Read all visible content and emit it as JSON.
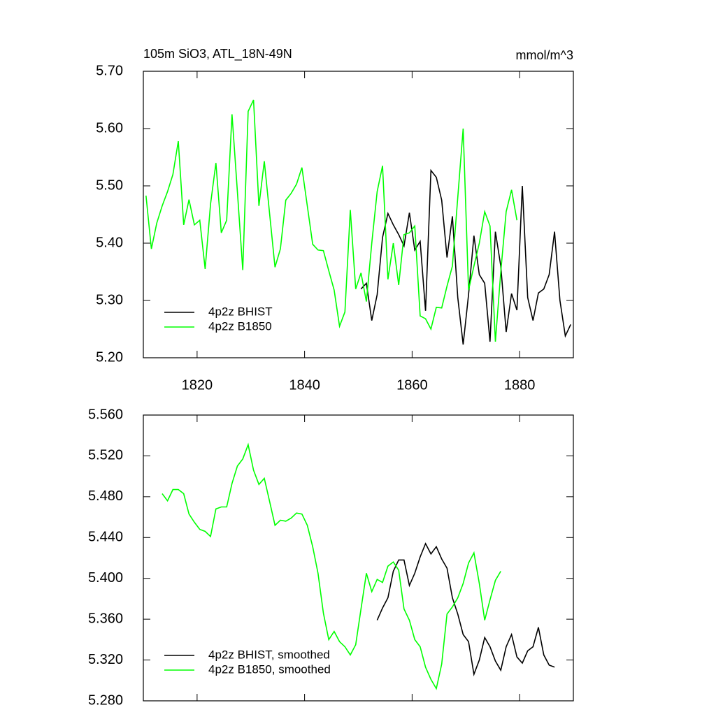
{
  "chart_data": [
    {
      "type": "line",
      "title": "105m SiO3, ATL_18N-49N",
      "units": "mmol/m^3",
      "xlim": [
        1810,
        1890
      ],
      "xticks": [
        1820,
        1840,
        1860,
        1880
      ],
      "xtick_labels": true,
      "ylim": [
        5.2,
        5.7
      ],
      "yticks": [
        {
          "value": 5.2,
          "label": "5.20"
        },
        {
          "value": 5.3,
          "label": "5.30"
        },
        {
          "value": 5.4,
          "label": "5.40"
        },
        {
          "value": 5.5,
          "label": "5.50"
        },
        {
          "value": 5.6,
          "label": "5.60"
        },
        {
          "value": 5.7,
          "label": "5.70"
        }
      ],
      "legend": "lower left",
      "series": [
        {
          "name": "4p2z BHIST",
          "color": "#000000",
          "x": [
            1850.5,
            1851.5,
            1852.5,
            1853.5,
            1854.5,
            1855.5,
            1856.5,
            1857.5,
            1858.5,
            1859.5,
            1860.5,
            1861.5,
            1862.5,
            1863.5,
            1864.5,
            1865.5,
            1866.5,
            1867.5,
            1868.5,
            1869.5,
            1870.5,
            1871.5,
            1872.5,
            1873.5,
            1874.5,
            1875.5,
            1876.5,
            1877.5,
            1878.5,
            1879.5,
            1880.5,
            1881.5,
            1882.5,
            1883.5,
            1884.5,
            1885.5,
            1886.5,
            1887.5,
            1888.5,
            1889.5
          ],
          "values": [
            5.32,
            5.33,
            5.265,
            5.31,
            5.41,
            5.452,
            5.432,
            5.415,
            5.395,
            5.453,
            5.388,
            5.403,
            5.282,
            5.527,
            5.515,
            5.475,
            5.375,
            5.447,
            5.305,
            5.223,
            5.31,
            5.413,
            5.345,
            5.33,
            5.228,
            5.42,
            5.36,
            5.245,
            5.312,
            5.283,
            5.5,
            5.305,
            5.265,
            5.313,
            5.32,
            5.345,
            5.42,
            5.3,
            5.238,
            5.258
          ]
        },
        {
          "name": "4p2z B1850",
          "color": "#00ff00",
          "x": [
            1810.5,
            1811.5,
            1812.5,
            1813.5,
            1814.5,
            1815.5,
            1816.5,
            1817.5,
            1818.5,
            1819.5,
            1820.5,
            1821.5,
            1822.5,
            1823.5,
            1824.5,
            1825.5,
            1826.5,
            1827.5,
            1828.5,
            1829.5,
            1830.5,
            1831.5,
            1832.5,
            1833.5,
            1834.5,
            1835.5,
            1836.5,
            1837.5,
            1838.5,
            1839.5,
            1840.5,
            1841.5,
            1842.5,
            1843.5,
            1844.5,
            1845.5,
            1846.5,
            1847.5,
            1848.5,
            1849.5,
            1850.5,
            1851.5,
            1852.5,
            1853.5,
            1854.5,
            1855.5,
            1856.5,
            1857.5,
            1858.5,
            1859.5,
            1860.5,
            1861.5,
            1862.5,
            1863.5,
            1864.5,
            1865.5,
            1866.5,
            1867.5,
            1868.5,
            1869.5,
            1870.5,
            1871.5,
            1872.5,
            1873.5,
            1874.5,
            1875.5,
            1876.5,
            1877.5,
            1878.5,
            1879.5
          ],
          "values": [
            5.483,
            5.39,
            5.435,
            5.465,
            5.49,
            5.52,
            5.578,
            5.432,
            5.476,
            5.432,
            5.44,
            5.355,
            5.468,
            5.54,
            5.418,
            5.44,
            5.625,
            5.49,
            5.353,
            5.63,
            5.65,
            5.465,
            5.543,
            5.45,
            5.358,
            5.39,
            5.475,
            5.487,
            5.503,
            5.532,
            5.465,
            5.398,
            5.388,
            5.387,
            5.352,
            5.318,
            5.255,
            5.28,
            5.458,
            5.32,
            5.348,
            5.298,
            5.4,
            5.49,
            5.535,
            5.337,
            5.4,
            5.327,
            5.415,
            5.418,
            5.43,
            5.273,
            5.268,
            5.25,
            5.288,
            5.287,
            5.325,
            5.36,
            5.48,
            5.6,
            5.318,
            5.36,
            5.4,
            5.455,
            5.43,
            5.228,
            5.35,
            5.455,
            5.493,
            5.44
          ]
        }
      ]
    },
    {
      "type": "line",
      "xlim": [
        1810,
        1890
      ],
      "xticks": [
        1820,
        1840,
        1860,
        1880
      ],
      "xtick_labels": false,
      "ylim": [
        5.28,
        5.56
      ],
      "yticks": [
        {
          "value": 5.28,
          "label": "5.280"
        },
        {
          "value": 5.32,
          "label": "5.320"
        },
        {
          "value": 5.36,
          "label": "5.360"
        },
        {
          "value": 5.4,
          "label": "5.400"
        },
        {
          "value": 5.44,
          "label": "5.440"
        },
        {
          "value": 5.48,
          "label": "5.480"
        },
        {
          "value": 5.52,
          "label": "5.520"
        },
        {
          "value": 5.56,
          "label": "5.560"
        }
      ],
      "legend": "lower left",
      "series": [
        {
          "name": "4p2z BHIST, smoothed",
          "color": "#000000",
          "x": [
            1853.5,
            1854.5,
            1855.5,
            1856.5,
            1857.5,
            1858.5,
            1859.5,
            1860.5,
            1861.5,
            1862.5,
            1863.5,
            1864.5,
            1865.5,
            1866.5,
            1867.5,
            1868.5,
            1869.5,
            1870.5,
            1871.5,
            1872.5,
            1873.5,
            1874.5,
            1875.5,
            1876.5,
            1877.5,
            1878.5,
            1879.5,
            1880.5,
            1881.5,
            1882.5,
            1883.5,
            1884.5,
            1885.5,
            1886.5
          ],
          "values": [
            5.359,
            5.371,
            5.381,
            5.407,
            5.418,
            5.418,
            5.393,
            5.405,
            5.421,
            5.434,
            5.424,
            5.431,
            5.419,
            5.41,
            5.381,
            5.365,
            5.345,
            5.338,
            5.306,
            5.32,
            5.342,
            5.333,
            5.319,
            5.31,
            5.333,
            5.345,
            5.323,
            5.317,
            5.329,
            5.333,
            5.352,
            5.325,
            5.315,
            5.313
          ]
        },
        {
          "name": "4p2z B1850, smoothed",
          "color": "#00ff00",
          "x": [
            1813.5,
            1814.5,
            1815.5,
            1816.5,
            1817.5,
            1818.5,
            1819.5,
            1820.5,
            1821.5,
            1822.5,
            1823.5,
            1824.5,
            1825.5,
            1826.5,
            1827.5,
            1828.5,
            1829.5,
            1830.5,
            1831.5,
            1832.5,
            1833.5,
            1834.5,
            1835.5,
            1836.5,
            1837.5,
            1838.5,
            1839.5,
            1840.5,
            1841.5,
            1842.5,
            1843.5,
            1844.5,
            1845.5,
            1846.5,
            1847.5,
            1848.5,
            1849.5,
            1850.5,
            1851.5,
            1852.5,
            1853.5,
            1854.5,
            1855.5,
            1856.5,
            1857.5,
            1858.5,
            1859.5,
            1860.5,
            1861.5,
            1862.5,
            1863.5,
            1864.5,
            1865.5,
            1866.5,
            1867.5,
            1868.5,
            1869.5,
            1870.5,
            1871.5,
            1872.5,
            1873.5,
            1874.5,
            1875.5,
            1876.5
          ],
          "values": [
            5.483,
            5.476,
            5.487,
            5.487,
            5.483,
            5.463,
            5.455,
            5.448,
            5.446,
            5.441,
            5.468,
            5.47,
            5.47,
            5.493,
            5.51,
            5.517,
            5.531,
            5.506,
            5.492,
            5.498,
            5.475,
            5.452,
            5.457,
            5.456,
            5.459,
            5.464,
            5.463,
            5.452,
            5.431,
            5.405,
            5.366,
            5.34,
            5.348,
            5.338,
            5.333,
            5.325,
            5.335,
            5.37,
            5.405,
            5.387,
            5.399,
            5.396,
            5.412,
            5.416,
            5.408,
            5.37,
            5.359,
            5.34,
            5.333,
            5.313,
            5.301,
            5.292,
            5.316,
            5.365,
            5.372,
            5.381,
            5.395,
            5.415,
            5.425,
            5.395,
            5.359,
            5.379,
            5.398,
            5.407
          ]
        }
      ]
    }
  ]
}
